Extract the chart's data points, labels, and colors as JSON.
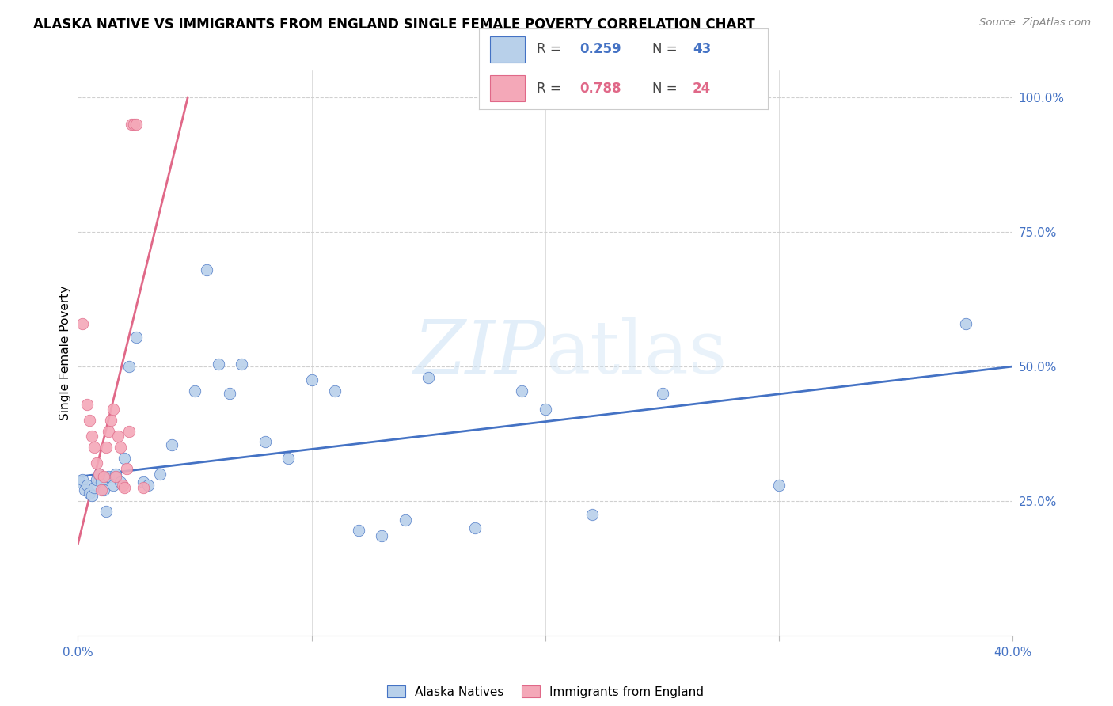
{
  "title": "ALASKA NATIVE VS IMMIGRANTS FROM ENGLAND SINGLE FEMALE POVERTY CORRELATION CHART",
  "source": "Source: ZipAtlas.com",
  "ylabel": "Single Female Poverty",
  "x_range": [
    0.0,
    0.4
  ],
  "y_range": [
    0.0,
    1.05
  ],
  "watermark": "ZIPatlas",
  "alaska_natives_x": [
    0.001,
    0.002,
    0.003,
    0.004,
    0.005,
    0.006,
    0.007,
    0.008,
    0.009,
    0.01,
    0.011,
    0.012,
    0.013,
    0.015,
    0.016,
    0.018,
    0.02,
    0.022,
    0.025,
    0.028,
    0.03,
    0.035,
    0.04,
    0.05,
    0.055,
    0.06,
    0.065,
    0.07,
    0.08,
    0.09,
    0.1,
    0.11,
    0.12,
    0.13,
    0.14,
    0.15,
    0.17,
    0.19,
    0.2,
    0.22,
    0.25,
    0.3,
    0.38
  ],
  "alaska_natives_y": [
    0.285,
    0.29,
    0.27,
    0.28,
    0.265,
    0.26,
    0.275,
    0.29,
    0.3,
    0.285,
    0.27,
    0.23,
    0.295,
    0.28,
    0.3,
    0.285,
    0.33,
    0.5,
    0.555,
    0.285,
    0.28,
    0.3,
    0.355,
    0.455,
    0.68,
    0.505,
    0.45,
    0.505,
    0.36,
    0.33,
    0.475,
    0.455,
    0.195,
    0.185,
    0.215,
    0.48,
    0.2,
    0.455,
    0.42,
    0.225,
    0.45,
    0.28,
    0.58
  ],
  "england_x": [
    0.002,
    0.004,
    0.005,
    0.006,
    0.007,
    0.008,
    0.009,
    0.01,
    0.011,
    0.012,
    0.013,
    0.014,
    0.015,
    0.016,
    0.017,
    0.018,
    0.019,
    0.02,
    0.021,
    0.022,
    0.023,
    0.024,
    0.025,
    0.028
  ],
  "england_y": [
    0.58,
    0.43,
    0.4,
    0.37,
    0.35,
    0.32,
    0.3,
    0.27,
    0.295,
    0.35,
    0.38,
    0.4,
    0.42,
    0.295,
    0.37,
    0.35,
    0.28,
    0.275,
    0.31,
    0.38,
    0.95,
    0.95,
    0.95,
    0.275
  ],
  "blue_line_x": [
    0.0,
    0.4
  ],
  "blue_line_y": [
    0.295,
    0.5
  ],
  "pink_line_x": [
    0.0,
    0.047
  ],
  "pink_line_y": [
    0.17,
    1.0
  ],
  "scatter_color_blue": "#b8d0ea",
  "scatter_color_pink": "#f4a8b8",
  "line_color_blue": "#4472c4",
  "line_color_pink": "#e06888",
  "background_color": "#ffffff",
  "grid_color": "#d0d0d0",
  "y_ticks": [
    0.0,
    0.25,
    0.5,
    0.75,
    1.0
  ],
  "y_tick_labels": [
    "",
    "25.0%",
    "50.0%",
    "75.0%",
    "100.0%"
  ],
  "x_ticks": [
    0.0,
    0.1,
    0.2,
    0.3,
    0.4
  ],
  "x_tick_labels": [
    "0.0%",
    "",
    "",
    "",
    "40.0%"
  ]
}
